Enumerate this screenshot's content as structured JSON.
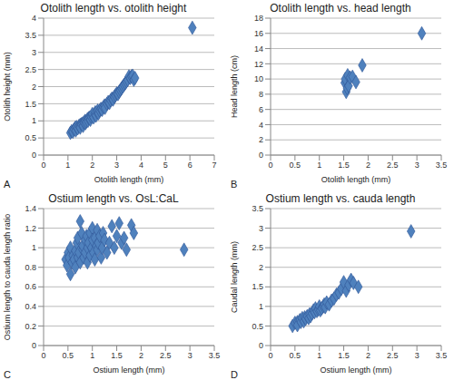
{
  "chart_data": [
    {
      "type": "scatter",
      "title": "Otolith length vs. otolith height",
      "annotation": "A",
      "x_label": "Otolith length (mm)",
      "y_label": "Otolith height (mm)",
      "color": "#4f81bd",
      "marker": "diamond",
      "grid": "y",
      "xlim": [
        0,
        7
      ],
      "xticks": [
        0,
        1,
        2,
        3,
        4,
        5,
        6,
        7
      ],
      "ylim": [
        0,
        4
      ],
      "yticks": [
        0,
        0.5,
        1,
        1.5,
        2,
        2.5,
        3,
        3.5,
        4
      ],
      "x": [
        1.1,
        1.15,
        1.2,
        1.25,
        1.3,
        1.32,
        1.35,
        1.4,
        1.45,
        1.5,
        1.5,
        1.55,
        1.6,
        1.62,
        1.65,
        1.7,
        1.72,
        1.75,
        1.8,
        1.82,
        1.85,
        1.9,
        1.92,
        1.95,
        2.0,
        2.0,
        2.05,
        2.1,
        2.12,
        2.15,
        2.2,
        2.22,
        2.25,
        2.3,
        2.35,
        2.4,
        2.45,
        2.5,
        2.52,
        2.6,
        2.65,
        2.7,
        2.75,
        2.8,
        2.85,
        2.9,
        2.95,
        3.0,
        3.05,
        3.1,
        3.15,
        3.2,
        3.25,
        3.3,
        3.35,
        3.4,
        3.45,
        3.5,
        3.55,
        3.6,
        3.65,
        3.7,
        3.75,
        6.1
      ],
      "values": [
        0.65,
        0.7,
        0.68,
        0.75,
        0.8,
        0.72,
        0.82,
        0.78,
        0.85,
        0.88,
        0.8,
        0.9,
        0.92,
        0.85,
        0.95,
        1.0,
        0.93,
        0.98,
        1.05,
        1.0,
        1.08,
        1.1,
        1.03,
        1.12,
        1.15,
        1.2,
        1.1,
        1.2,
        1.25,
        1.15,
        1.25,
        1.3,
        1.22,
        1.3,
        1.35,
        1.32,
        1.4,
        1.45,
        1.38,
        1.5,
        1.55,
        1.52,
        1.6,
        1.65,
        1.62,
        1.7,
        1.75,
        1.8,
        1.78,
        1.85,
        1.9,
        1.95,
        2.0,
        2.05,
        2.1,
        2.15,
        2.2,
        2.3,
        2.25,
        2.3,
        2.32,
        2.2,
        2.25,
        3.72
      ]
    },
    {
      "type": "scatter",
      "title": "Otolith length vs. head length",
      "annotation": "B",
      "x_label": "Otolith length (mm)",
      "y_label": "Head length (cm)",
      "color": "#4f81bd",
      "marker": "diamond",
      "grid": "y",
      "xlim": [
        0,
        3.5
      ],
      "xticks": [
        0,
        0.5,
        1,
        1.5,
        2,
        2.5,
        3,
        3.5
      ],
      "ylim": [
        0,
        18
      ],
      "yticks": [
        0,
        2,
        4,
        6,
        8,
        10,
        12,
        14,
        16,
        18
      ],
      "x": [
        1.52,
        1.53,
        1.55,
        1.57,
        1.58,
        1.6,
        1.63,
        1.68,
        1.75,
        1.88,
        3.1
      ],
      "values": [
        9.5,
        10.0,
        8.3,
        8.8,
        10.5,
        9.1,
        10.2,
        10.3,
        9.6,
        11.8,
        16.0
      ]
    },
    {
      "type": "scatter",
      "title": "Ostium length vs. OsL:CaL",
      "annotation": "C",
      "x_label": "Ostium length (mm)",
      "y_label": "Ostium length to cauda length ratio",
      "color": "#4f81bd",
      "marker": "diamond",
      "grid": "y",
      "xlim": [
        0,
        3.5
      ],
      "xticks": [
        0,
        0.5,
        1,
        1.5,
        2,
        2.5,
        3,
        3.5
      ],
      "ylim": [
        0,
        1.4
      ],
      "yticks": [
        0,
        0.2,
        0.4,
        0.6,
        0.8,
        1,
        1.2,
        1.4
      ],
      "x": [
        0.45,
        0.48,
        0.5,
        0.52,
        0.55,
        0.55,
        0.58,
        0.6,
        0.62,
        0.65,
        0.65,
        0.68,
        0.7,
        0.7,
        0.72,
        0.75,
        0.75,
        0.78,
        0.8,
        0.8,
        0.82,
        0.85,
        0.85,
        0.88,
        0.9,
        0.9,
        0.92,
        0.95,
        0.95,
        0.98,
        1.0,
        1.0,
        1.02,
        1.05,
        1.05,
        1.08,
        1.1,
        1.1,
        1.12,
        1.15,
        1.18,
        1.2,
        1.22,
        1.25,
        1.3,
        1.35,
        1.4,
        1.45,
        1.5,
        1.55,
        1.6,
        1.65,
        1.7,
        1.8,
        1.85,
        2.88
      ],
      "values": [
        0.88,
        0.82,
        0.95,
        0.9,
        0.73,
        1.0,
        0.85,
        0.92,
        0.88,
        0.8,
        0.97,
        1.05,
        0.9,
        1.1,
        0.95,
        0.85,
        1.27,
        1.15,
        0.98,
        1.02,
        0.9,
        1.08,
        0.95,
        1.12,
        1.0,
        0.85,
        1.05,
        1.15,
        0.92,
        1.0,
        1.2,
        1.08,
        0.95,
        1.1,
        0.88,
        1.02,
        1.18,
        0.98,
        1.05,
        1.12,
        0.9,
        1.0,
        1.15,
        1.08,
        0.95,
        1.05,
        1.22,
        1.0,
        1.12,
        1.25,
        1.05,
        1.1,
        0.98,
        1.23,
        1.15,
        0.98
      ]
    },
    {
      "type": "scatter",
      "title": "Ostium length vs. cauda length",
      "annotation": "D",
      "x_label": "Ostium length (mm)",
      "y_label": "Caudal length (mm)",
      "color": "#4f81bd",
      "marker": "diamond",
      "grid": "y",
      "xlim": [
        0,
        3.5
      ],
      "xticks": [
        0,
        0.5,
        1,
        1.5,
        2,
        2.5,
        3,
        3.5
      ],
      "ylim": [
        0,
        3.5
      ],
      "yticks": [
        0,
        0.5,
        1,
        1.5,
        2,
        2.5,
        3,
        3.5
      ],
      "x": [
        0.45,
        0.5,
        0.55,
        0.55,
        0.6,
        0.62,
        0.65,
        0.68,
        0.7,
        0.72,
        0.75,
        0.78,
        0.8,
        0.82,
        0.85,
        0.88,
        0.9,
        0.92,
        0.95,
        0.98,
        1.0,
        1.02,
        1.05,
        1.08,
        1.1,
        1.12,
        1.15,
        1.2,
        1.25,
        1.3,
        1.35,
        1.4,
        1.45,
        1.5,
        1.55,
        1.6,
        1.65,
        1.7,
        1.8,
        2.88
      ],
      "values": [
        0.5,
        0.58,
        0.6,
        0.52,
        0.65,
        0.6,
        0.7,
        0.62,
        0.72,
        0.68,
        0.75,
        0.7,
        0.8,
        0.75,
        0.82,
        0.9,
        0.85,
        0.95,
        0.88,
        0.92,
        1.0,
        0.9,
        0.95,
        1.0,
        1.05,
        0.98,
        1.1,
        1.05,
        1.15,
        1.2,
        1.3,
        1.35,
        1.45,
        1.62,
        1.4,
        1.55,
        1.68,
        1.6,
        1.5,
        2.92
      ]
    }
  ]
}
